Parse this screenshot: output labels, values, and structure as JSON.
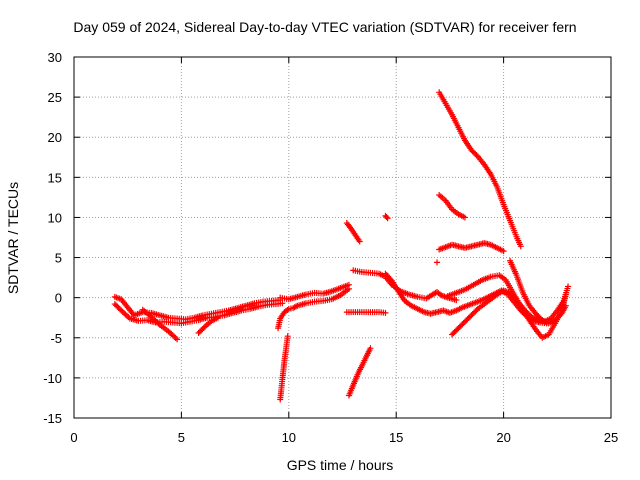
{
  "chart_data": {
    "type": "scatter",
    "title": "Day 059 of 2024, Sidereal Day-to-day VTEC variation (SDTVAR) for receiver fern",
    "xlabel": "GPS time / hours",
    "ylabel": "SDTVAR / TECUs",
    "xlim": [
      0,
      25
    ],
    "ylim": [
      -15,
      30
    ],
    "xticks": [
      "0",
      "5",
      "10",
      "15",
      "20",
      "25"
    ],
    "yticks": [
      "30",
      "25",
      "20",
      "15",
      "10",
      "5",
      "0",
      "-5",
      "-10",
      "-15"
    ],
    "grid": true,
    "marker": "+",
    "marker_color": "#ff0000",
    "series": [
      {
        "values": [
          [
            1.9,
            0.1
          ],
          [
            2.2,
            -0.2
          ],
          [
            2.5,
            -1.2
          ],
          [
            2.8,
            -2.2
          ],
          [
            3.2,
            -1.8
          ],
          [
            3.6,
            -1.9
          ],
          [
            4.0,
            -2.2
          ],
          [
            4.4,
            -2.5
          ],
          [
            4.8,
            -2.6
          ],
          [
            5.2,
            -2.7
          ],
          [
            5.6,
            -2.5
          ],
          [
            6.0,
            -2.2
          ],
          [
            6.4,
            -2.0
          ],
          [
            6.8,
            -1.8
          ],
          [
            7.2,
            -1.6
          ],
          [
            7.6,
            -1.3
          ],
          [
            8.0,
            -1.0
          ],
          [
            8.4,
            -0.7
          ],
          [
            8.8,
            -0.5
          ],
          [
            9.2,
            -0.4
          ],
          [
            9.6,
            -0.3
          ]
        ]
      },
      {
        "values": [
          [
            1.9,
            -0.8
          ],
          [
            2.2,
            -1.6
          ],
          [
            2.6,
            -2.6
          ],
          [
            3.0,
            -2.9
          ],
          [
            3.4,
            -2.8
          ],
          [
            3.8,
            -3.1
          ],
          [
            4.2,
            -3.0
          ],
          [
            4.6,
            -3.1
          ],
          [
            5.0,
            -3.2
          ],
          [
            5.4,
            -3.0
          ],
          [
            5.8,
            -2.8
          ],
          [
            6.2,
            -2.5
          ],
          [
            6.6,
            -2.4
          ],
          [
            7.0,
            -2.2
          ],
          [
            7.4,
            -1.9
          ],
          [
            7.8,
            -1.6
          ],
          [
            8.2,
            -1.4
          ],
          [
            8.6,
            -1.1
          ],
          [
            9.0,
            -0.9
          ],
          [
            9.4,
            -0.8
          ],
          [
            9.7,
            -0.7
          ]
        ]
      },
      {
        "values": [
          [
            3.2,
            -1.5
          ],
          [
            3.6,
            -2.4
          ],
          [
            4.0,
            -3.4
          ],
          [
            4.4,
            -4.2
          ],
          [
            4.8,
            -5.2
          ]
        ]
      },
      {
        "values": [
          [
            5.8,
            -4.4
          ],
          [
            6.1,
            -3.6
          ],
          [
            6.4,
            -2.9
          ],
          [
            6.7,
            -2.5
          ]
        ]
      },
      {
        "values": [
          [
            9.6,
            -12.7
          ],
          [
            9.65,
            -11.5
          ],
          [
            9.7,
            -10.2
          ],
          [
            9.75,
            -9.0
          ],
          [
            9.8,
            -7.8
          ],
          [
            9.85,
            -6.8
          ],
          [
            9.9,
            -5.8
          ],
          [
            9.95,
            -4.8
          ]
        ]
      },
      {
        "values": [
          [
            9.5,
            -3.8
          ],
          [
            9.6,
            -2.6
          ],
          [
            9.8,
            -1.8
          ],
          [
            10.0,
            -1.4
          ],
          [
            10.2,
            -1.3
          ],
          [
            10.4,
            -1.0
          ],
          [
            10.8,
            -0.7
          ],
          [
            11.2,
            -0.5
          ],
          [
            11.6,
            -0.4
          ],
          [
            12.0,
            -0.2
          ],
          [
            12.4,
            0.3
          ],
          [
            12.8,
            1.1
          ]
        ]
      },
      {
        "values": [
          [
            9.6,
            0.0
          ],
          [
            10.0,
            -0.2
          ],
          [
            10.4,
            0.1
          ],
          [
            10.8,
            0.4
          ],
          [
            11.2,
            0.6
          ],
          [
            11.6,
            0.5
          ],
          [
            12.0,
            0.8
          ],
          [
            12.4,
            1.2
          ],
          [
            12.8,
            1.6
          ]
        ]
      },
      {
        "values": [
          [
            12.7,
            -1.8
          ],
          [
            13.0,
            -1.8
          ],
          [
            13.3,
            -1.8
          ],
          [
            13.6,
            -1.8
          ],
          [
            13.9,
            -1.8
          ],
          [
            14.2,
            -1.8
          ],
          [
            14.5,
            -1.9
          ]
        ]
      },
      {
        "values": [
          [
            12.8,
            -12.2
          ],
          [
            13.0,
            -10.9
          ],
          [
            13.2,
            -9.6
          ],
          [
            13.4,
            -8.5
          ],
          [
            13.6,
            -7.4
          ],
          [
            13.8,
            -6.3
          ]
        ]
      },
      {
        "values": [
          [
            12.7,
            9.3
          ],
          [
            12.9,
            8.6
          ],
          [
            13.1,
            7.8
          ],
          [
            13.3,
            7.0
          ]
        ]
      },
      {
        "values": [
          [
            14.5,
            10.2
          ],
          [
            14.6,
            9.9
          ]
        ]
      },
      {
        "values": [
          [
            13.0,
            3.4
          ],
          [
            13.4,
            3.2
          ],
          [
            13.8,
            3.1
          ],
          [
            14.2,
            3.0
          ],
          [
            14.5,
            2.6
          ],
          [
            14.8,
            1.6
          ],
          [
            15.2,
            0.8
          ],
          [
            15.6,
            0.4
          ],
          [
            16.0,
            0.1
          ],
          [
            16.4,
            -0.1
          ],
          [
            16.7,
            0.4
          ],
          [
            16.9,
            0.7
          ],
          [
            17.1,
            0.3
          ],
          [
            17.4,
            0.0
          ],
          [
            17.8,
            -0.3
          ]
        ]
      },
      {
        "values": [
          [
            14.5,
            3.0
          ],
          [
            14.8,
            2.1
          ],
          [
            15.1,
            0.8
          ],
          [
            15.4,
            -0.4
          ],
          [
            15.7,
            -1.0
          ],
          [
            16.0,
            -1.4
          ],
          [
            16.3,
            -1.8
          ],
          [
            16.6,
            -2.0
          ],
          [
            16.9,
            -1.8
          ],
          [
            17.2,
            -1.6
          ],
          [
            17.5,
            -1.9
          ],
          [
            17.8,
            -1.6
          ],
          [
            18.1,
            -1.2
          ],
          [
            18.4,
            -0.9
          ],
          [
            18.7,
            -0.6
          ],
          [
            19.0,
            -0.3
          ],
          [
            19.3,
            0.1
          ],
          [
            19.6,
            0.5
          ],
          [
            19.9,
            0.9
          ],
          [
            20.2,
            0.4
          ],
          [
            20.5,
            -0.6
          ],
          [
            20.8,
            -1.6
          ],
          [
            21.1,
            -2.4
          ],
          [
            21.4,
            -2.9
          ],
          [
            21.7,
            -3.1
          ],
          [
            22.0,
            -3.2
          ]
        ]
      },
      {
        "values": [
          [
            17.0,
            25.6
          ],
          [
            17.3,
            24.2
          ],
          [
            17.6,
            22.8
          ],
          [
            17.9,
            21.2
          ],
          [
            18.2,
            19.6
          ],
          [
            18.5,
            18.4
          ],
          [
            18.8,
            17.6
          ],
          [
            19.1,
            16.6
          ],
          [
            19.4,
            15.4
          ],
          [
            19.7,
            13.8
          ],
          [
            20.0,
            11.6
          ],
          [
            20.3,
            9.6
          ],
          [
            20.6,
            7.6
          ],
          [
            20.8,
            6.4
          ]
        ]
      },
      {
        "values": [
          [
            17.0,
            12.8
          ],
          [
            17.3,
            12.1
          ],
          [
            17.6,
            11.0
          ],
          [
            17.9,
            10.4
          ],
          [
            18.2,
            10.0
          ]
        ]
      },
      {
        "values": [
          [
            17.0,
            6.0
          ],
          [
            17.3,
            6.3
          ],
          [
            17.6,
            6.6
          ],
          [
            17.9,
            6.4
          ],
          [
            18.2,
            6.2
          ],
          [
            18.5,
            6.4
          ],
          [
            18.8,
            6.6
          ],
          [
            19.1,
            6.8
          ],
          [
            19.4,
            6.6
          ],
          [
            19.7,
            6.2
          ],
          [
            20.0,
            5.8
          ]
        ]
      },
      {
        "values": [
          [
            16.9,
            4.4
          ]
        ]
      },
      {
        "values": [
          [
            17.6,
            -4.6
          ],
          [
            17.9,
            -3.8
          ],
          [
            18.2,
            -3.0
          ],
          [
            18.5,
            -2.2
          ],
          [
            18.8,
            -1.4
          ],
          [
            19.1,
            -0.8
          ],
          [
            19.4,
            -0.2
          ],
          [
            19.7,
            0.4
          ],
          [
            20.0,
            0.9
          ],
          [
            20.3,
            0.6
          ],
          [
            20.6,
            -0.4
          ],
          [
            20.9,
            -1.6
          ],
          [
            21.2,
            -2.8
          ],
          [
            21.5,
            -4.0
          ],
          [
            21.8,
            -5.0
          ],
          [
            22.1,
            -4.6
          ],
          [
            22.4,
            -3.2
          ],
          [
            22.7,
            -1.6
          ],
          [
            22.9,
            0.4
          ]
        ]
      },
      {
        "values": [
          [
            17.4,
            0.2
          ],
          [
            17.8,
            0.6
          ],
          [
            18.2,
            1.0
          ],
          [
            18.6,
            1.6
          ],
          [
            19.0,
            2.2
          ],
          [
            19.4,
            2.6
          ],
          [
            19.8,
            2.8
          ],
          [
            20.1,
            2.2
          ],
          [
            20.4,
            0.8
          ],
          [
            20.7,
            -0.6
          ],
          [
            21.0,
            -1.6
          ],
          [
            21.3,
            -2.4
          ],
          [
            21.6,
            -2.8
          ],
          [
            21.9,
            -3.0
          ],
          [
            22.2,
            -2.6
          ],
          [
            22.5,
            -1.6
          ],
          [
            22.8,
            -0.4
          ],
          [
            23.0,
            1.4
          ]
        ]
      },
      {
        "values": [
          [
            20.3,
            4.6
          ],
          [
            20.6,
            2.8
          ],
          [
            20.9,
            0.6
          ],
          [
            21.2,
            -1.0
          ],
          [
            21.5,
            -2.0
          ],
          [
            21.8,
            -2.8
          ],
          [
            22.1,
            -3.2
          ],
          [
            22.4,
            -2.8
          ],
          [
            22.7,
            -2.0
          ],
          [
            22.9,
            -1.0
          ]
        ]
      }
    ]
  }
}
